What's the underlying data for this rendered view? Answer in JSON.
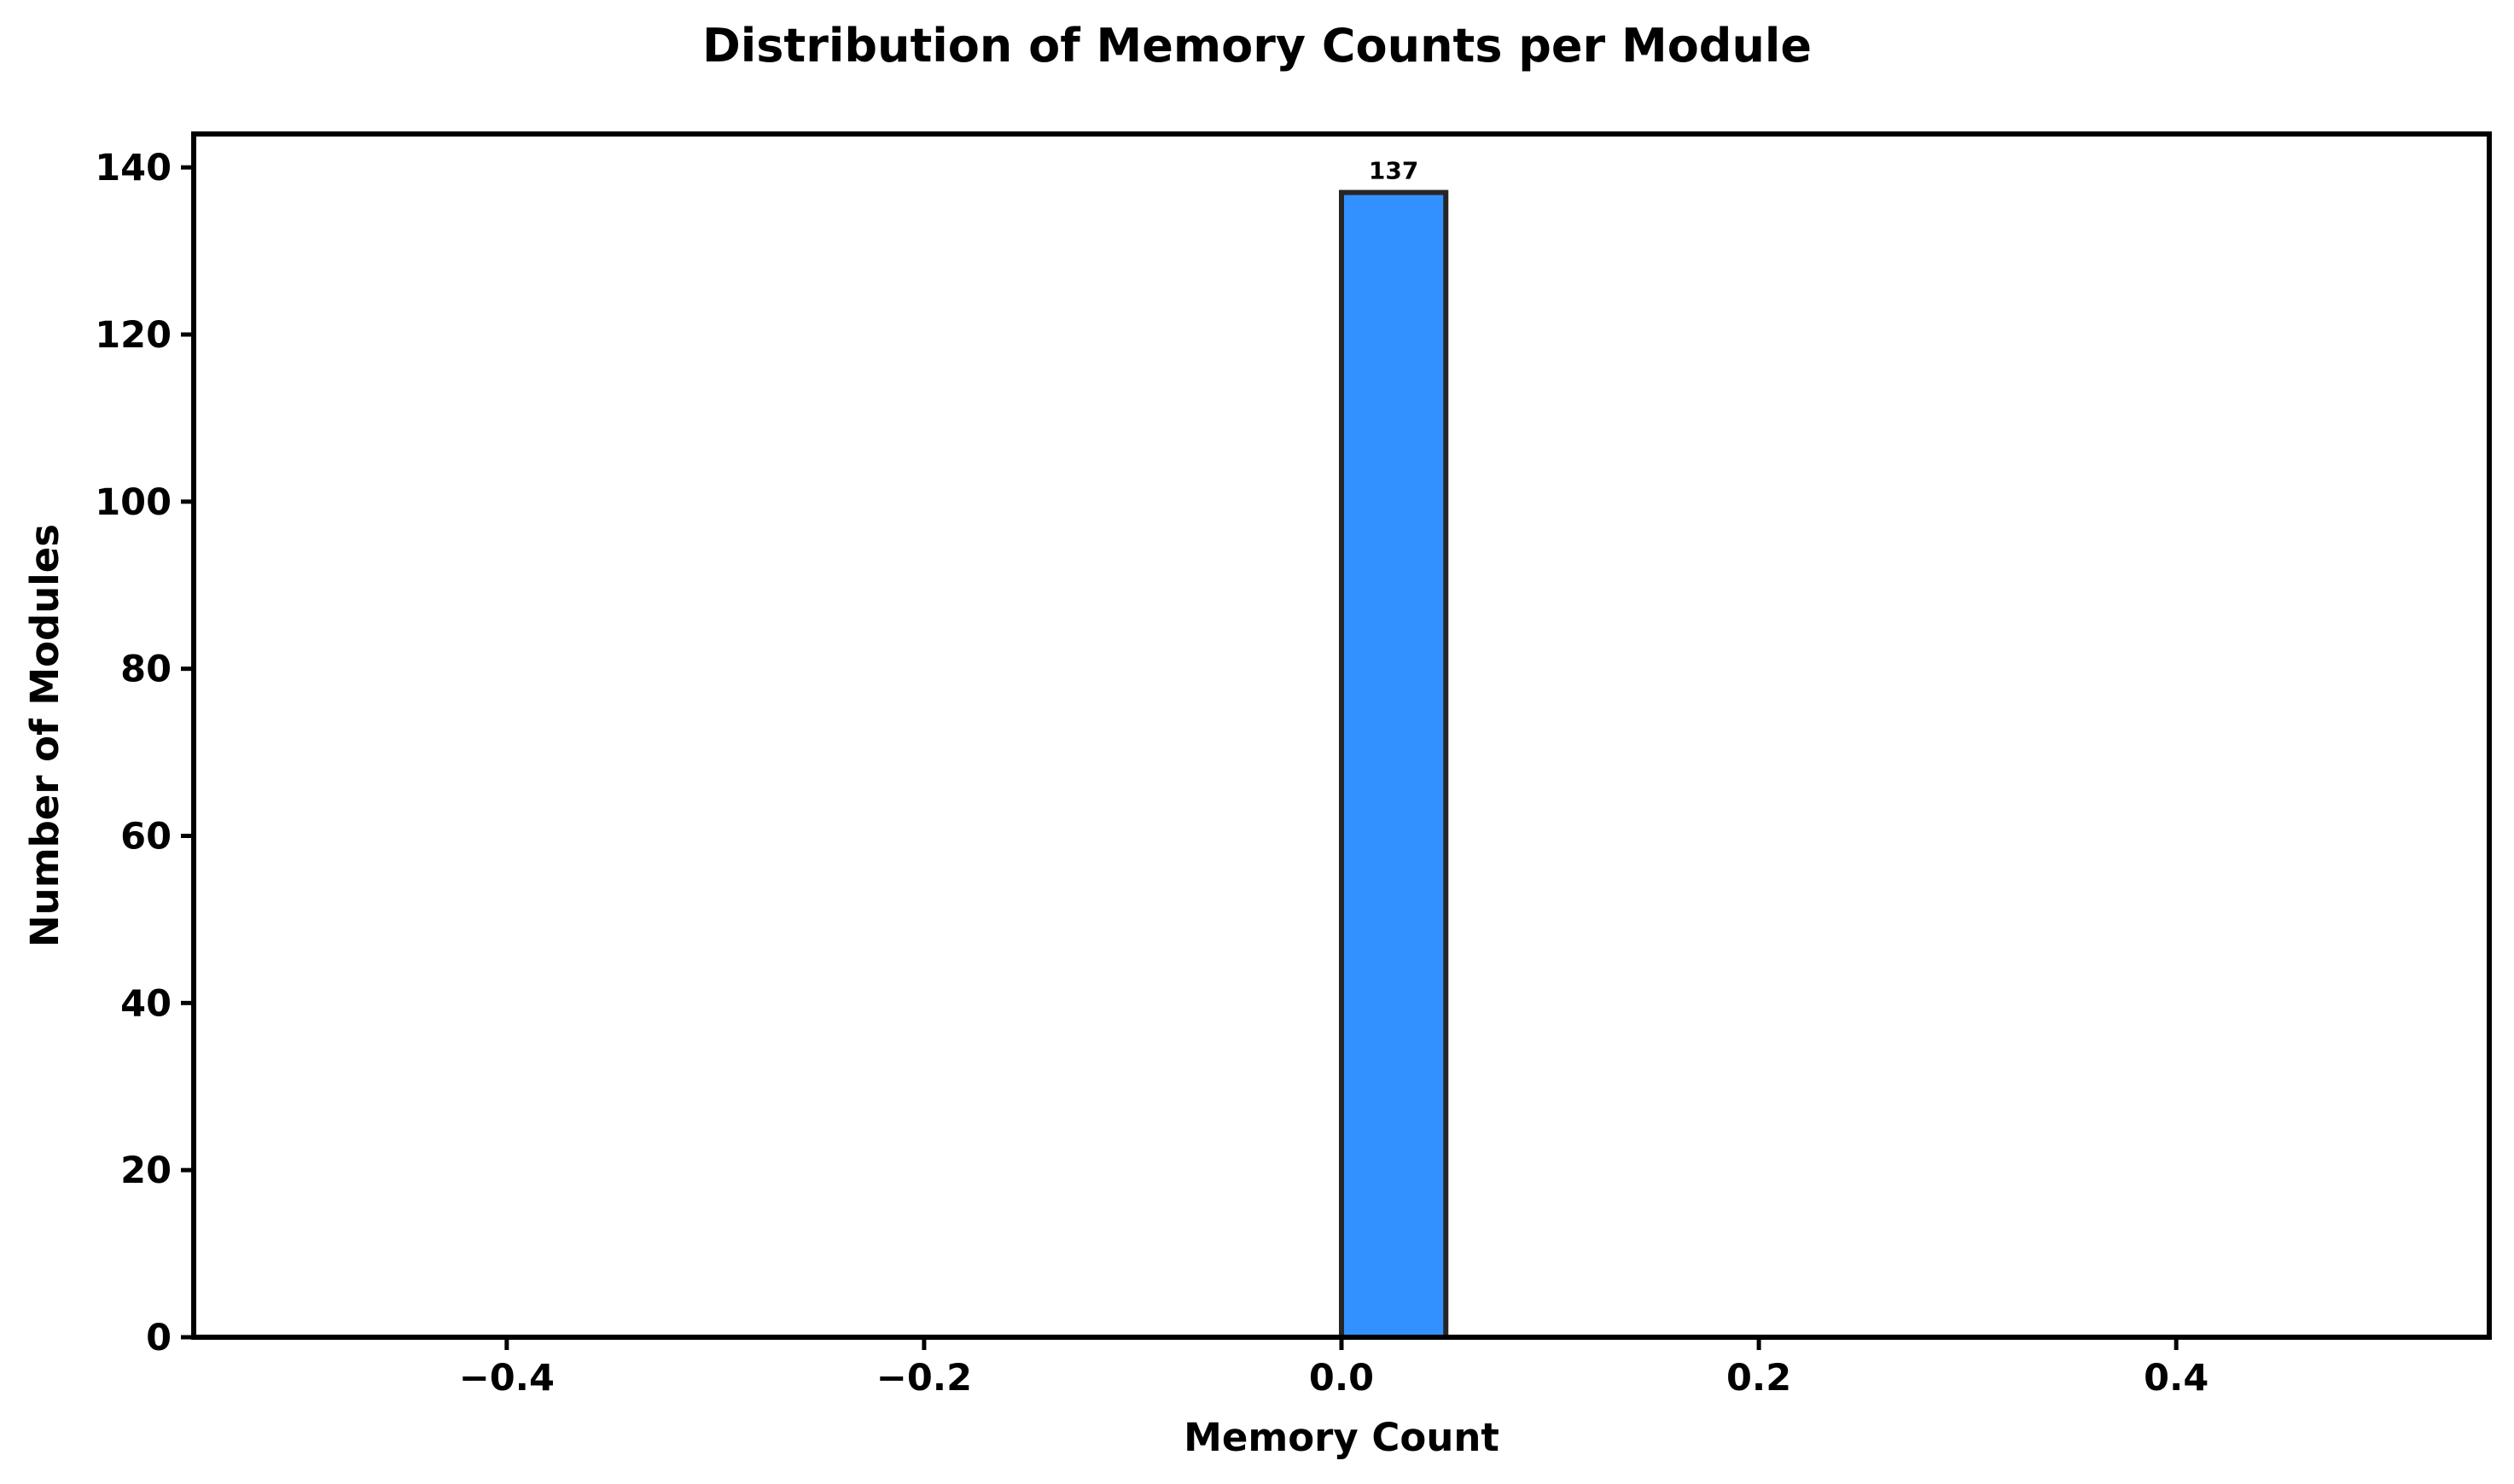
{
  "chart_data": {
    "type": "bar",
    "title": "Distribution of Memory Counts per Module",
    "xlabel": "Memory Count",
    "ylabel": "Number of Modules",
    "xlim": [
      -0.55,
      0.55
    ],
    "ylim": [
      0,
      144
    ],
    "x_ticks": [
      -0.4,
      -0.2,
      0.0,
      0.2,
      0.4
    ],
    "x_tick_labels": [
      "−0.4",
      "−0.2",
      "0.0",
      "0.2",
      "0.4"
    ],
    "y_ticks": [
      0,
      20,
      40,
      60,
      80,
      100,
      120,
      140
    ],
    "y_tick_labels": [
      "0",
      "20",
      "40",
      "60",
      "80",
      "100",
      "120",
      "140"
    ],
    "grid": false,
    "bars": [
      {
        "x_start": 0.0,
        "x_end": 0.05,
        "value": 137,
        "label": "137"
      }
    ],
    "bar_color": "#3391ff",
    "bar_edge_color": "#262626"
  }
}
